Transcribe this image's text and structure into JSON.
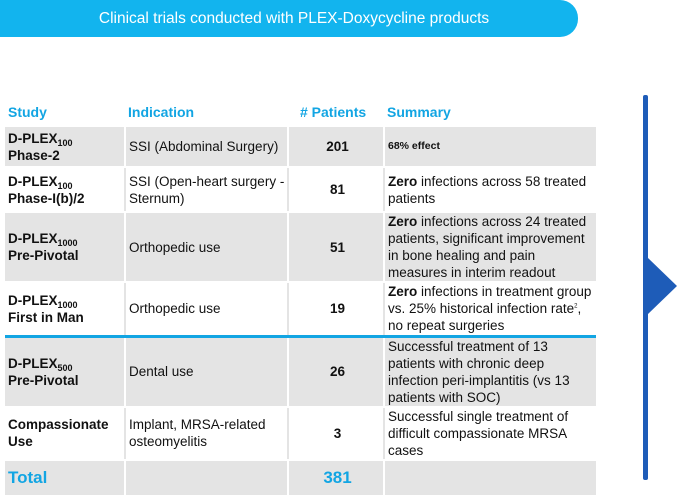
{
  "banner": {
    "title": "Clinical trials conducted with PLEX-Doxycycline products"
  },
  "table": {
    "headers": {
      "study": "Study",
      "indication": "Indication",
      "patients": "# Patients",
      "summary": "Summary"
    },
    "rows": [
      {
        "study_main": "D-PLEX",
        "study_sub": "100",
        "study_line2": "Phase-2",
        "indication": "SSI (Abdominal Surgery)",
        "patients": "201",
        "summary_bold": "",
        "summary_text": "68% effect"
      },
      {
        "study_main": "D-PLEX",
        "study_sub": "100",
        "study_line2": "Phase-I(b)/2",
        "indication": "SSI (Open-heart surgery  -Sternum)",
        "patients": "81",
        "summary_bold": "Zero",
        "summary_text": " infections across 58 treated patients"
      },
      {
        "study_main": "D-PLEX",
        "study_sub": "1000",
        "study_line2": "Pre-Pivotal",
        "indication": "Orthopedic use",
        "patients": "51",
        "summary_bold": "Zero",
        "summary_text": " infections across 24 treated patients, significant improvement in bone healing and pain measures in interim readout"
      },
      {
        "study_main": "D-PLEX",
        "study_sub": "1000",
        "study_line2": "First in Man",
        "indication": "Orthopedic use",
        "patients": "19",
        "summary_bold": "Zero",
        "summary_text": " infections in treatment group vs. 25% historical infection rate",
        "summary_sup": "2",
        "summary_tail": ", no repeat surgeries"
      },
      {
        "study_main": "D-PLEX",
        "study_sub": "500",
        "study_line2": "Pre-Pivotal",
        "indication": "Dental use",
        "patients": "26",
        "summary_bold": "",
        "summary_text": "Successful treatment of 13 patients with chronic deep infection peri-implantitis (vs 13 patients with SOC)"
      },
      {
        "study_main": "Compassionate",
        "study_sub": "",
        "study_line2": "Use",
        "indication": "Implant, MRSA-related osteomyelitis",
        "patients": "3",
        "summary_bold": "",
        "summary_text": "Successful single treatment of difficult compassionate MRSA cases"
      }
    ],
    "total": {
      "label": "Total",
      "patients": "381"
    }
  },
  "colors": {
    "accent": "#12a5e3",
    "banner": "#12b4ee",
    "arrow": "#1e5cb8",
    "row_fill": "#e4e4e4"
  },
  "icons": {
    "arrow": "right-triangle-icon"
  }
}
